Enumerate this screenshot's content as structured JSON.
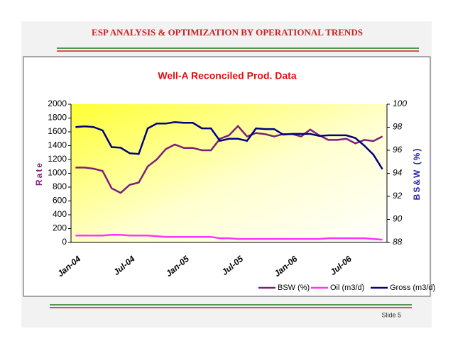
{
  "header": {
    "title": "ESP ANALYSIS & OPTIMIZATION BY OPERATIONAL TRENDS"
  },
  "footer": {
    "slide": "Slide 5"
  },
  "chart_data": {
    "type": "line",
    "title": "Well-A Reconciled Prod. Data",
    "y_label": "Rate",
    "y2_label": "BS&W (%)",
    "categories": [
      "Jan-04",
      null,
      null,
      null,
      null,
      null,
      "Jul-04",
      null,
      null,
      null,
      null,
      null,
      "Jan-05",
      null,
      null,
      null,
      null,
      null,
      "Jul-05",
      null,
      null,
      null,
      null,
      null,
      "Jan-06",
      null,
      null,
      null,
      null,
      null,
      "Jul-06",
      null,
      null,
      null,
      null
    ],
    "series": [
      {
        "name": "BSW (%)",
        "color": "#7b1f7b",
        "axis": "y2",
        "values": [
          94.5,
          94.5,
          94.4,
          94.2,
          92.7,
          92.3,
          93.0,
          93.2,
          94.6,
          95.2,
          96.1,
          96.5,
          96.2,
          96.2,
          96.0,
          96.0,
          97.0,
          97.3,
          98.1,
          97.2,
          97.5,
          97.4,
          97.2,
          97.4,
          97.4,
          97.2,
          97.8,
          97.3,
          96.9,
          96.9,
          97.0,
          96.6,
          96.9,
          96.8,
          97.2
        ]
      },
      {
        "name": "Oil (m3/d)",
        "color": "#ff33ff",
        "values": [
          100,
          100,
          100,
          100,
          110,
          110,
          100,
          100,
          100,
          90,
          80,
          80,
          80,
          80,
          80,
          80,
          60,
          60,
          50,
          50,
          50,
          50,
          50,
          50,
          50,
          50,
          50,
          50,
          60,
          60,
          60,
          60,
          60,
          50,
          40
        ]
      },
      {
        "name": "Gross (m3/d)",
        "color": "#000080",
        "values": [
          1670,
          1680,
          1670,
          1620,
          1380,
          1370,
          1290,
          1280,
          1650,
          1720,
          1720,
          1740,
          1730,
          1730,
          1650,
          1650,
          1470,
          1500,
          1500,
          1470,
          1650,
          1640,
          1640,
          1560,
          1570,
          1570,
          1570,
          1540,
          1550,
          1550,
          1550,
          1510,
          1400,
          1270,
          1060
        ]
      }
    ],
    "ylim": [
      0,
      2000
    ],
    "yticks": [
      0,
      200,
      400,
      600,
      800,
      1000,
      1200,
      1400,
      1600,
      1800,
      2000
    ],
    "y2lim": [
      88,
      100
    ],
    "y2ticks": [
      88,
      90,
      92,
      94,
      96,
      98,
      100
    ],
    "legend": "bottom-right"
  }
}
